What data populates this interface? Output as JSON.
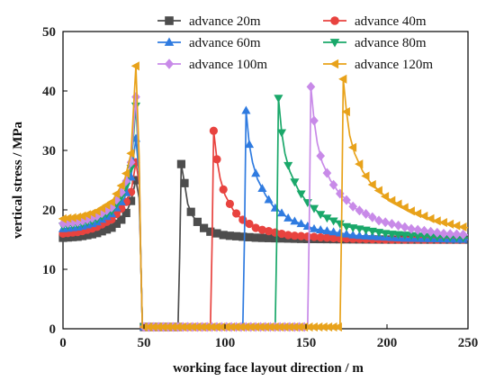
{
  "chart_data": {
    "type": "line",
    "title": "",
    "xlabel": "working face layout direction / m",
    "ylabel": "vertical stress / MPa",
    "xlim": [
      0,
      250
    ],
    "ylim": [
      0,
      50
    ],
    "xticks": [
      0,
      50,
      100,
      150,
      200,
      250
    ],
    "yticks": [
      0,
      10,
      20,
      30,
      40,
      50
    ],
    "grid": false,
    "legend_position": "top-right",
    "series": [
      {
        "name": "advance 20m",
        "color": "#4d4d4d",
        "marker": "square",
        "peak_x": 73,
        "peak_y": 27.7,
        "support_peak_y": 25.0,
        "support_edge_y": 15.3,
        "points": [
          [
            0,
            15.3
          ],
          [
            10,
            15.5
          ],
          [
            20,
            16.0
          ],
          [
            30,
            17.0
          ],
          [
            38,
            18.8
          ],
          [
            42,
            21.5
          ],
          [
            45,
            25.0
          ],
          [
            47,
            22.0
          ],
          [
            48,
            12.0
          ],
          [
            49,
            0.3
          ],
          [
            60,
            0.3
          ],
          [
            70,
            0.3
          ],
          [
            71,
            0.3
          ],
          [
            72,
            12.0
          ],
          [
            73,
            27.7
          ],
          [
            75,
            24.5
          ],
          [
            77,
            21.0
          ],
          [
            80,
            19.0
          ],
          [
            85,
            17.3
          ],
          [
            90,
            16.4
          ],
          [
            100,
            15.7
          ],
          [
            120,
            15.3
          ],
          [
            150,
            15.1
          ],
          [
            200,
            15.0
          ],
          [
            250,
            15.0
          ]
        ]
      },
      {
        "name": "advance 40m",
        "color": "#e8433f",
        "marker": "circle",
        "peak_x": 93,
        "peak_y": 33.3,
        "support_peak_y": 28.0,
        "support_edge_y": 16.0,
        "points": [
          [
            0,
            16.0
          ],
          [
            10,
            16.3
          ],
          [
            20,
            17.0
          ],
          [
            30,
            18.4
          ],
          [
            38,
            20.8
          ],
          [
            42,
            23.0
          ],
          [
            45,
            28.0
          ],
          [
            47,
            24.5
          ],
          [
            48,
            12.0
          ],
          [
            49,
            0.3
          ],
          [
            70,
            0.3
          ],
          [
            90,
            0.3
          ],
          [
            91,
            0.3
          ],
          [
            92,
            14.0
          ],
          [
            93,
            33.3
          ],
          [
            95,
            28.5
          ],
          [
            97,
            25.3
          ],
          [
            100,
            22.5
          ],
          [
            105,
            20.0
          ],
          [
            110,
            18.5
          ],
          [
            120,
            16.8
          ],
          [
            140,
            15.7
          ],
          [
            170,
            15.2
          ],
          [
            200,
            15.0
          ],
          [
            250,
            15.0
          ]
        ]
      },
      {
        "name": "advance 60m",
        "color": "#2f7be0",
        "marker": "triangle",
        "peak_x": 113,
        "peak_y": 36.7,
        "support_peak_y": 32.0,
        "support_edge_y": 16.8,
        "points": [
          [
            0,
            16.8
          ],
          [
            10,
            17.1
          ],
          [
            20,
            17.8
          ],
          [
            30,
            19.3
          ],
          [
            38,
            22.0
          ],
          [
            42,
            25.5
          ],
          [
            45,
            32.0
          ],
          [
            47,
            26.0
          ],
          [
            48,
            12.0
          ],
          [
            49,
            0.3
          ],
          [
            80,
            0.3
          ],
          [
            110,
            0.3
          ],
          [
            111,
            0.3
          ],
          [
            112,
            15.0
          ],
          [
            113,
            36.7
          ],
          [
            115,
            31.0
          ],
          [
            117,
            28.0
          ],
          [
            120,
            25.2
          ],
          [
            125,
            22.5
          ],
          [
            130,
            20.5
          ],
          [
            140,
            18.4
          ],
          [
            155,
            16.8
          ],
          [
            180,
            15.7
          ],
          [
            210,
            15.2
          ],
          [
            250,
            15.0
          ]
        ]
      },
      {
        "name": "advance 80m",
        "color": "#1aa86a",
        "marker": "triangle-down",
        "peak_x": 133,
        "peak_y": 38.8,
        "support_peak_y": 37.5,
        "support_edge_y": 17.3,
        "points": [
          [
            0,
            17.3
          ],
          [
            10,
            17.6
          ],
          [
            20,
            18.3
          ],
          [
            30,
            19.8
          ],
          [
            38,
            23.0
          ],
          [
            42,
            27.0
          ],
          [
            45,
            37.5
          ],
          [
            47,
            27.0
          ],
          [
            48,
            12.0
          ],
          [
            49,
            0.3
          ],
          [
            90,
            0.3
          ],
          [
            130,
            0.3
          ],
          [
            131,
            0.3
          ],
          [
            132,
            16.0
          ],
          [
            133,
            38.8
          ],
          [
            135,
            33.0
          ],
          [
            137,
            29.5
          ],
          [
            140,
            26.5
          ],
          [
            145,
            23.5
          ],
          [
            150,
            21.5
          ],
          [
            160,
            19.0
          ],
          [
            175,
            17.2
          ],
          [
            200,
            16.0
          ],
          [
            225,
            15.5
          ],
          [
            250,
            15.3
          ]
        ]
      },
      {
        "name": "advance 100m",
        "color": "#c88ae8",
        "marker": "diamond",
        "peak_x": 153,
        "peak_y": 40.7,
        "support_peak_y": 39.0,
        "support_edge_y": 17.7,
        "points": [
          [
            0,
            17.7
          ],
          [
            10,
            18.0
          ],
          [
            20,
            18.8
          ],
          [
            30,
            20.4
          ],
          [
            38,
            23.8
          ],
          [
            42,
            28.0
          ],
          [
            45,
            39.0
          ],
          [
            47,
            28.0
          ],
          [
            48,
            12.0
          ],
          [
            49,
            0.3
          ],
          [
            100,
            0.3
          ],
          [
            150,
            0.3
          ],
          [
            151,
            0.3
          ],
          [
            152,
            17.0
          ],
          [
            153,
            40.7
          ],
          [
            155,
            35.0
          ],
          [
            157,
            31.2
          ],
          [
            160,
            28.0
          ],
          [
            165,
            25.0
          ],
          [
            170,
            23.0
          ],
          [
            180,
            20.3
          ],
          [
            195,
            18.2
          ],
          [
            215,
            16.8
          ],
          [
            235,
            16.0
          ],
          [
            250,
            15.8
          ]
        ]
      },
      {
        "name": "advance 120m",
        "color": "#e8a21a",
        "marker": "triangle-left",
        "peak_x": 173,
        "peak_y": 42.0,
        "support_peak_y": 44.2,
        "support_edge_y": 18.5,
        "points": [
          [
            0,
            18.5
          ],
          [
            10,
            18.8
          ],
          [
            20,
            19.6
          ],
          [
            30,
            21.3
          ],
          [
            38,
            25.0
          ],
          [
            42,
            29.5
          ],
          [
            45,
            44.2
          ],
          [
            47,
            29.0
          ],
          [
            48,
            12.0
          ],
          [
            49,
            0.3
          ],
          [
            110,
            0.3
          ],
          [
            170,
            0.3
          ],
          [
            171,
            0.3
          ],
          [
            172,
            18.0
          ],
          [
            173,
            42.0
          ],
          [
            175,
            36.5
          ],
          [
            177,
            32.5
          ],
          [
            180,
            29.5
          ],
          [
            185,
            26.5
          ],
          [
            190,
            24.5
          ],
          [
            200,
            22.0
          ],
          [
            215,
            19.8
          ],
          [
            230,
            18.2
          ],
          [
            245,
            17.2
          ],
          [
            250,
            17.0
          ]
        ]
      }
    ]
  }
}
